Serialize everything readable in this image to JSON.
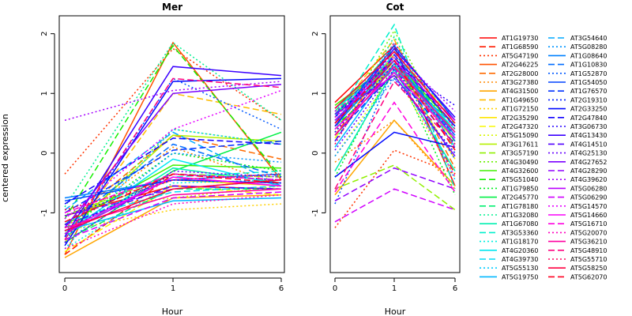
{
  "chart_data": {
    "type": "line",
    "ylabel": "centered expression",
    "legend": {
      "placement": "right",
      "names": [
        "AT1G19730",
        "AT1G68590",
        "AT5G47190",
        "AT2G46225",
        "AT2G28000",
        "AT3G27380",
        "AT4G31500",
        "AT1G49650",
        "AT1G72150",
        "AT2G35290",
        "AT2G47320",
        "AT5G15090",
        "AT3G17611",
        "AT3G57190",
        "AT4G30490",
        "AT4G32600",
        "AT5G51040",
        "AT1G79850",
        "AT2G45770",
        "AT1G78180",
        "AT1G32080",
        "AT1G67080",
        "AT3G53360",
        "AT1G18170",
        "AT4G20360",
        "AT4G39730",
        "AT5G55130",
        "AT5G19750",
        "AT3G54640",
        "AT5G08280",
        "AT1G08640",
        "AT1G10830",
        "AT1G52870",
        "AT1G54050",
        "AT1G76570",
        "AT2G19310",
        "AT2G33250",
        "AT2G47840",
        "AT3G06730",
        "AT4G13430",
        "AT4G14510",
        "AT4G25130",
        "AT4G27652",
        "AT4G28290",
        "AT4G39620",
        "AT5G06280",
        "AT5G06290",
        "AT5G14570",
        "AT5G14660",
        "AT5G16710",
        "AT5G20070",
        "AT5G36210",
        "AT5G48910",
        "AT5G55710",
        "AT5G58250",
        "AT5G62070"
      ],
      "colors": [
        "#ff0000",
        "#ff1a00",
        "#ff3300",
        "#ff5200",
        "#ff6a00",
        "#ff8800",
        "#ffa500",
        "#ffbb00",
        "#ffd000",
        "#ffe500",
        "#f8f800",
        "#d8f500",
        "#b5f000",
        "#90f000",
        "#6af000",
        "#40f000",
        "#15f000",
        "#00f020",
        "#00f045",
        "#00f070",
        "#00f090",
        "#00f0b0",
        "#00f0cc",
        "#00f0e0",
        "#00e8f0",
        "#00dcf5",
        "#00ccff",
        "#00b8ff",
        "#00a8ff",
        "#0094ff",
        "#0080ff",
        "#006cff",
        "#0058ff",
        "#0044ff",
        "#0030ff",
        "#001cff",
        "#0008ff",
        "#1000ff",
        "#2500ff",
        "#3a00ff",
        "#5000ff",
        "#6500ff",
        "#7a00ff",
        "#9000ff",
        "#a500ff",
        "#ba00ff",
        "#d000ff",
        "#e500ff",
        "#f800f8",
        "#ff00e0",
        "#ff00c0",
        "#ff00a0",
        "#ff0080",
        "#ff0060",
        "#ff0040",
        "#ff0020"
      ],
      "linestyles": [
        "solid",
        "dashed",
        "dotted",
        "solid",
        "dashed",
        "dotted",
        "solid",
        "dashed",
        "dotted",
        "solid",
        "dashed",
        "dotted",
        "solid",
        "dashed",
        "dotted",
        "solid",
        "dashed",
        "dotted",
        "solid",
        "dashed",
        "dotted",
        "solid",
        "dashed",
        "dotted",
        "solid",
        "dashed",
        "dotted",
        "solid",
        "dashed",
        "dotted",
        "solid",
        "dashed",
        "dotted",
        "solid",
        "dashed",
        "dotted",
        "solid",
        "dashed",
        "dotted",
        "solid",
        "dashed",
        "dotted",
        "solid",
        "dashed",
        "dotted",
        "solid",
        "dashed",
        "dotted",
        "solid",
        "dashed",
        "dotted",
        "solid",
        "dashed",
        "dotted",
        "solid",
        "dashed"
      ]
    },
    "panels": [
      {
        "title": "Mer",
        "xlabel": "Hour",
        "x_ticks": [
          "0",
          "1",
          "6"
        ],
        "y_ticks": [
          2,
          1,
          0,
          -1
        ],
        "ylim": [
          -2.0,
          2.3
        ],
        "series_values": [
          [
            -1.05,
            -0.55,
            -0.6
          ],
          [
            -1.7,
            -0.35,
            -0.45
          ],
          [
            -0.35,
            1.75,
            0.55
          ],
          [
            -1.7,
            1.85,
            -0.45
          ],
          [
            -1.2,
            0.3,
            -0.1
          ],
          [
            -1.25,
            0.1,
            -0.55
          ],
          [
            -1.75,
            -0.75,
            -0.7
          ],
          [
            -1.5,
            1.0,
            0.65
          ],
          [
            -1.3,
            -0.95,
            -0.85
          ],
          [
            -1.05,
            -0.45,
            -0.55
          ],
          [
            -1.65,
            -0.55,
            -0.7
          ],
          [
            -0.95,
            -0.75,
            -0.55
          ],
          [
            -1.35,
            0.3,
            0.2
          ],
          [
            -1.05,
            -0.35,
            -0.4
          ],
          [
            -1.4,
            0.4,
            0.15
          ],
          [
            -1.2,
            -0.2,
            -0.25
          ],
          [
            -1.1,
            1.8,
            -0.4
          ],
          [
            -1.3,
            0.0,
            -0.3
          ],
          [
            -1.5,
            -0.3,
            0.35
          ],
          [
            -1.45,
            -0.6,
            -0.6
          ],
          [
            -0.9,
            1.85,
            0.55
          ],
          [
            -1.4,
            -0.25,
            -0.5
          ],
          [
            -1.25,
            -0.4,
            -0.3
          ],
          [
            -1.6,
            -0.5,
            -0.45
          ],
          [
            -1.35,
            -0.1,
            -0.55
          ],
          [
            -1.15,
            -0.65,
            -0.55
          ],
          [
            -1.6,
            0.4,
            0.15
          ],
          [
            -1.3,
            -0.8,
            -0.75
          ],
          [
            -0.95,
            0.35,
            -0.55
          ],
          [
            -1.4,
            0.0,
            -0.15
          ],
          [
            -0.75,
            -0.45,
            -0.35
          ],
          [
            -1.2,
            0.15,
            -0.4
          ],
          [
            -1.5,
            1.25,
            0.4
          ],
          [
            -0.8,
            -0.45,
            -0.5
          ],
          [
            -1.0,
            0.05,
            0.2
          ],
          [
            -1.3,
            -0.35,
            -0.45
          ],
          [
            -1.55,
            1.2,
            1.25
          ],
          [
            -0.85,
            0.25,
            0.15
          ],
          [
            -1.05,
            -0.45,
            -0.5
          ],
          [
            -1.4,
            1.45,
            1.3
          ],
          [
            -1.2,
            -0.55,
            -0.6
          ],
          [
            -1.5,
            -0.3,
            -0.4
          ],
          [
            -1.25,
            1.0,
            1.15
          ],
          [
            -1.05,
            -0.6,
            -0.45
          ],
          [
            0.55,
            1.05,
            1.2
          ],
          [
            -1.35,
            -0.4,
            -0.55
          ],
          [
            -1.45,
            -0.75,
            -0.65
          ],
          [
            -1.1,
            0.4,
            1.05
          ],
          [
            -1.3,
            -0.4,
            -0.55
          ],
          [
            -1.0,
            -0.35,
            -0.45
          ],
          [
            -1.6,
            -0.85,
            -0.7
          ],
          [
            -1.25,
            -0.7,
            -0.6
          ],
          [
            -1.45,
            1.25,
            1.1
          ],
          [
            -0.95,
            -0.45,
            -0.35
          ],
          [
            -1.3,
            -0.6,
            -0.45
          ],
          [
            -1.15,
            -0.35,
            -0.5
          ]
        ]
      },
      {
        "title": "Cot",
        "xlabel": "Hour",
        "x_ticks": [
          "0",
          "1",
          "6"
        ],
        "y_ticks": [
          2,
          1,
          0,
          -1
        ],
        "ylim": [
          -2.0,
          2.3
        ],
        "series_values": [
          [
            0.85,
            1.8,
            -0.55
          ],
          [
            0.4,
            1.45,
            -0.35
          ],
          [
            -1.25,
            0.05,
            -0.35
          ],
          [
            0.75,
            1.55,
            0.2
          ],
          [
            0.3,
            1.65,
            -0.25
          ],
          [
            -0.15,
            0.55,
            -0.6
          ],
          [
            -0.7,
            0.55,
            -0.55
          ],
          [
            0.65,
            1.9,
            0.05
          ],
          [
            0.7,
            1.6,
            0.35
          ],
          [
            0.5,
            1.5,
            -0.1
          ],
          [
            0.25,
            1.7,
            0.55
          ],
          [
            -0.05,
            1.35,
            -0.4
          ],
          [
            0.55,
            1.45,
            0.2
          ],
          [
            -0.6,
            -0.2,
            -0.95
          ],
          [
            0.35,
            2.05,
            0.15
          ],
          [
            0.8,
            1.55,
            0.45
          ],
          [
            0.45,
            1.3,
            0.5
          ],
          [
            -0.4,
            1.5,
            -0.7
          ],
          [
            0.65,
            1.55,
            0.35
          ],
          [
            0.7,
            1.75,
            0.25
          ],
          [
            0.2,
            1.95,
            0.05
          ],
          [
            -0.3,
            1.4,
            -0.3
          ],
          [
            0.6,
            2.15,
            -0.6
          ],
          [
            0.55,
            1.65,
            0.6
          ],
          [
            0.75,
            1.45,
            0.4
          ],
          [
            0.6,
            1.65,
            0.1
          ],
          [
            0.4,
            1.85,
            -0.45
          ],
          [
            0.1,
            1.5,
            0.25
          ],
          [
            0.55,
            1.4,
            0.45
          ],
          [
            -0.05,
            1.25,
            0.35
          ],
          [
            0.45,
            1.55,
            0.3
          ],
          [
            0.65,
            1.7,
            0.2
          ],
          [
            -0.85,
            1.45,
            -0.1
          ],
          [
            0.5,
            1.8,
            0.55
          ],
          [
            0.3,
            1.35,
            0.15
          ],
          [
            0.7,
            1.25,
            0.0
          ],
          [
            -0.4,
            0.35,
            0.1
          ],
          [
            0.6,
            1.6,
            0.45
          ],
          [
            0.35,
            1.5,
            0.8
          ],
          [
            0.45,
            1.75,
            0.6
          ],
          [
            0.2,
            1.65,
            0.45
          ],
          [
            0.05,
            1.4,
            0.3
          ],
          [
            0.65,
            1.3,
            -0.05
          ],
          [
            -0.8,
            -0.25,
            -0.6
          ],
          [
            0.5,
            1.7,
            0.7
          ],
          [
            0.55,
            1.55,
            0.55
          ],
          [
            -1.15,
            -0.6,
            -0.95
          ],
          [
            0.7,
            1.45,
            -0.4
          ],
          [
            0.4,
            1.35,
            0.25
          ],
          [
            -0.65,
            0.85,
            -0.65
          ],
          [
            0.6,
            1.6,
            0.1
          ],
          [
            0.3,
            1.45,
            0.35
          ],
          [
            -0.6,
            1.2,
            0.15
          ],
          [
            0.15,
            1.85,
            0.4
          ],
          [
            0.75,
            1.7,
            0.5
          ],
          [
            0.5,
            1.55,
            0.05
          ]
        ]
      }
    ]
  }
}
